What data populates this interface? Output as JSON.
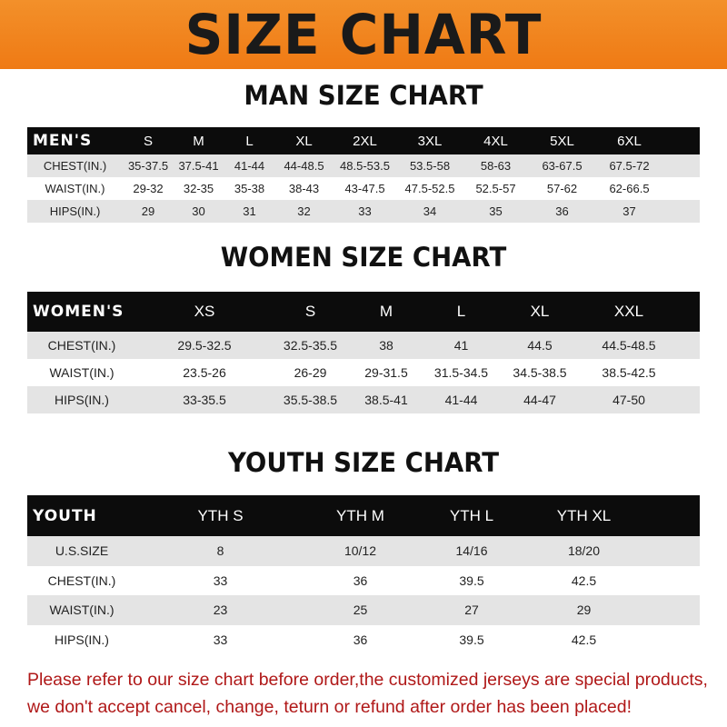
{
  "title": "SIZE CHART",
  "men": {
    "title": "MAN SIZE CHART",
    "header": [
      "MEN'S",
      "S",
      "M",
      "L",
      "XL",
      "2XL",
      "3XL",
      "4XL",
      "5XL",
      "6XL"
    ],
    "rows": [
      [
        "CHEST(IN.)",
        "35-37.5",
        "37.5-41",
        "41-44",
        "44-48.5",
        "48.5-53.5",
        "53.5-58",
        "58-63",
        "63-67.5",
        "67.5-72"
      ],
      [
        "WAIST(IN.)",
        "29-32",
        "32-35",
        "35-38",
        "38-43",
        "43-47.5",
        "47.5-52.5",
        "52.5-57",
        "57-62",
        "62-66.5"
      ],
      [
        "HIPS(IN.)",
        "29",
        "30",
        "31",
        "32",
        "33",
        "34",
        "35",
        "36",
        "37"
      ]
    ]
  },
  "women": {
    "title": "WOMEN SIZE CHART",
    "header": [
      "WOMEN'S",
      "XS",
      "S",
      "M",
      "L",
      "XL",
      "XXL"
    ],
    "rows": [
      [
        "CHEST(IN.)",
        "29.5-32.5",
        "32.5-35.5",
        "38",
        "41",
        "44.5",
        "44.5-48.5"
      ],
      [
        "WAIST(IN.)",
        "23.5-26",
        "26-29",
        "29-31.5",
        "31.5-34.5",
        "34.5-38.5",
        "38.5-42.5"
      ],
      [
        "HIPS(IN.)",
        "33-35.5",
        "35.5-38.5",
        "38.5-41",
        "41-44",
        "44-47",
        "47-50"
      ]
    ]
  },
  "youth": {
    "title": "YOUTH SIZE CHART",
    "header": [
      "YOUTH",
      "YTH S",
      "YTH M",
      "YTH L",
      "YTH XL"
    ],
    "rows": [
      [
        "U.S.SIZE",
        "8",
        "10/12",
        "14/16",
        "18/20"
      ],
      [
        "CHEST(IN.)",
        "33",
        "36",
        "39.5",
        "42.5"
      ],
      [
        "WAIST(IN.)",
        "23",
        "25",
        "27",
        "29"
      ],
      [
        "HIPS(IN.)",
        "33",
        "36",
        "39.5",
        "42.5"
      ]
    ]
  },
  "notice": [
    "Please refer to our size chart before order,the customized jerseys are special products,",
    "we don't accept cancel, change, teturn or refund after order has been placed!"
  ],
  "colors": {
    "banner": "#ef7a14",
    "header_row": "#0c0c0c",
    "notice": "#b01818"
  }
}
